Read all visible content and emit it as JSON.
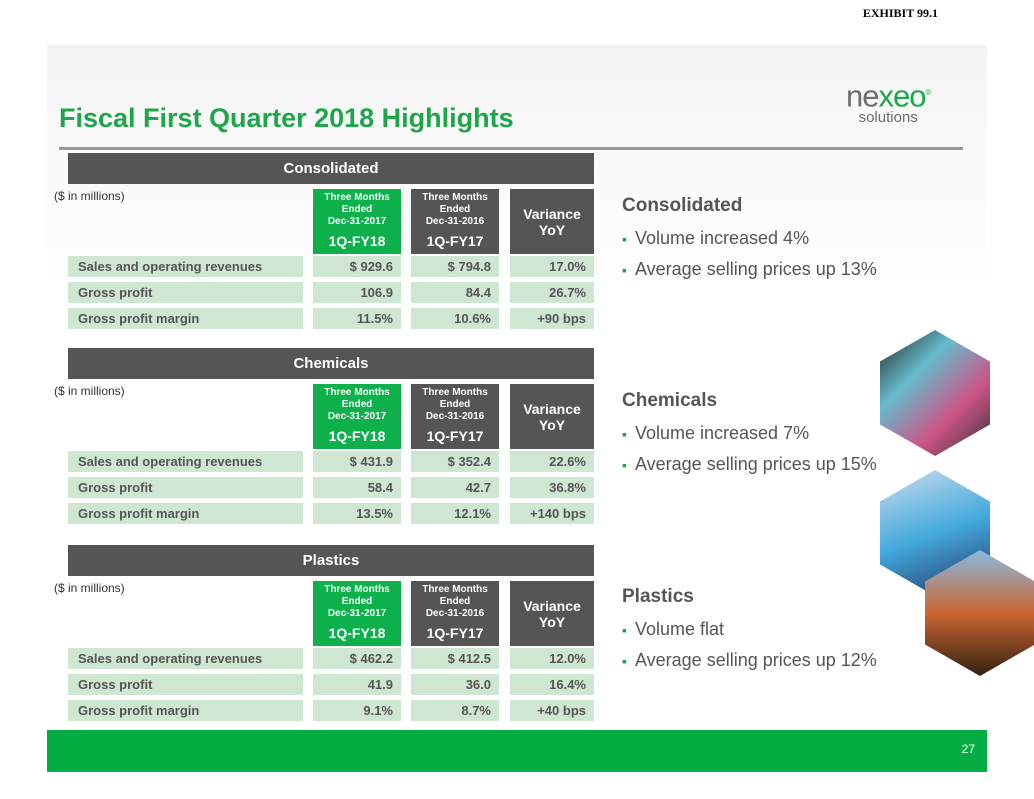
{
  "exhibit": "EXHIBIT 99.1",
  "title": "Fiscal First Quarter 2018 Highlights",
  "logo": {
    "ne": "ne",
    "x": "x",
    "eo": "eo",
    "reg": "®",
    "sub": "solutions"
  },
  "header": {
    "unit": "($ in millions)",
    "c1": [
      "Three Months",
      "Ended",
      "Dec-31-2017",
      "1Q-FY18"
    ],
    "c2": [
      "Three Months",
      "Ended",
      "Dec-31-2016",
      "1Q-FY17"
    ],
    "c3": [
      "Variance",
      "YoY"
    ]
  },
  "sections": [
    {
      "name": "Consolidated",
      "rows": [
        [
          "Sales and operating revenues",
          "$ 929.6",
          "$ 794.8",
          "17.0%"
        ],
        [
          "Gross profit",
          "106.9",
          "84.4",
          "26.7%"
        ],
        [
          "Gross profit margin",
          "11.5%",
          "10.6%",
          "+90 bps"
        ]
      ],
      "bullets": [
        "Volume increased 4%",
        "Average selling prices up 13%"
      ]
    },
    {
      "name": "Chemicals",
      "rows": [
        [
          "Sales and operating revenues",
          "$ 431.9",
          "$ 352.4",
          "22.6%"
        ],
        [
          "Gross profit",
          "58.4",
          "42.7",
          "36.8%"
        ],
        [
          "Gross profit margin",
          "13.5%",
          "12.1%",
          "+140 bps"
        ]
      ],
      "bullets": [
        "Volume increased 7%",
        "Average selling prices up 15%"
      ]
    },
    {
      "name": "Plastics",
      "rows": [
        [
          "Sales and operating revenues",
          "$    462.2",
          "$    412.5",
          "12.0%"
        ],
        [
          "Gross profit",
          "41.9",
          "36.0",
          "16.4%"
        ],
        [
          "Gross profit margin",
          "9.1%",
          "8.7%",
          "+40 bps"
        ]
      ],
      "bullets": [
        "Volume flat",
        "Average selling prices up 12%"
      ]
    }
  ],
  "page_number": "27",
  "colors": {
    "green": "#1fa64a",
    "dark": "#555555",
    "row": "#cfe6d3"
  }
}
